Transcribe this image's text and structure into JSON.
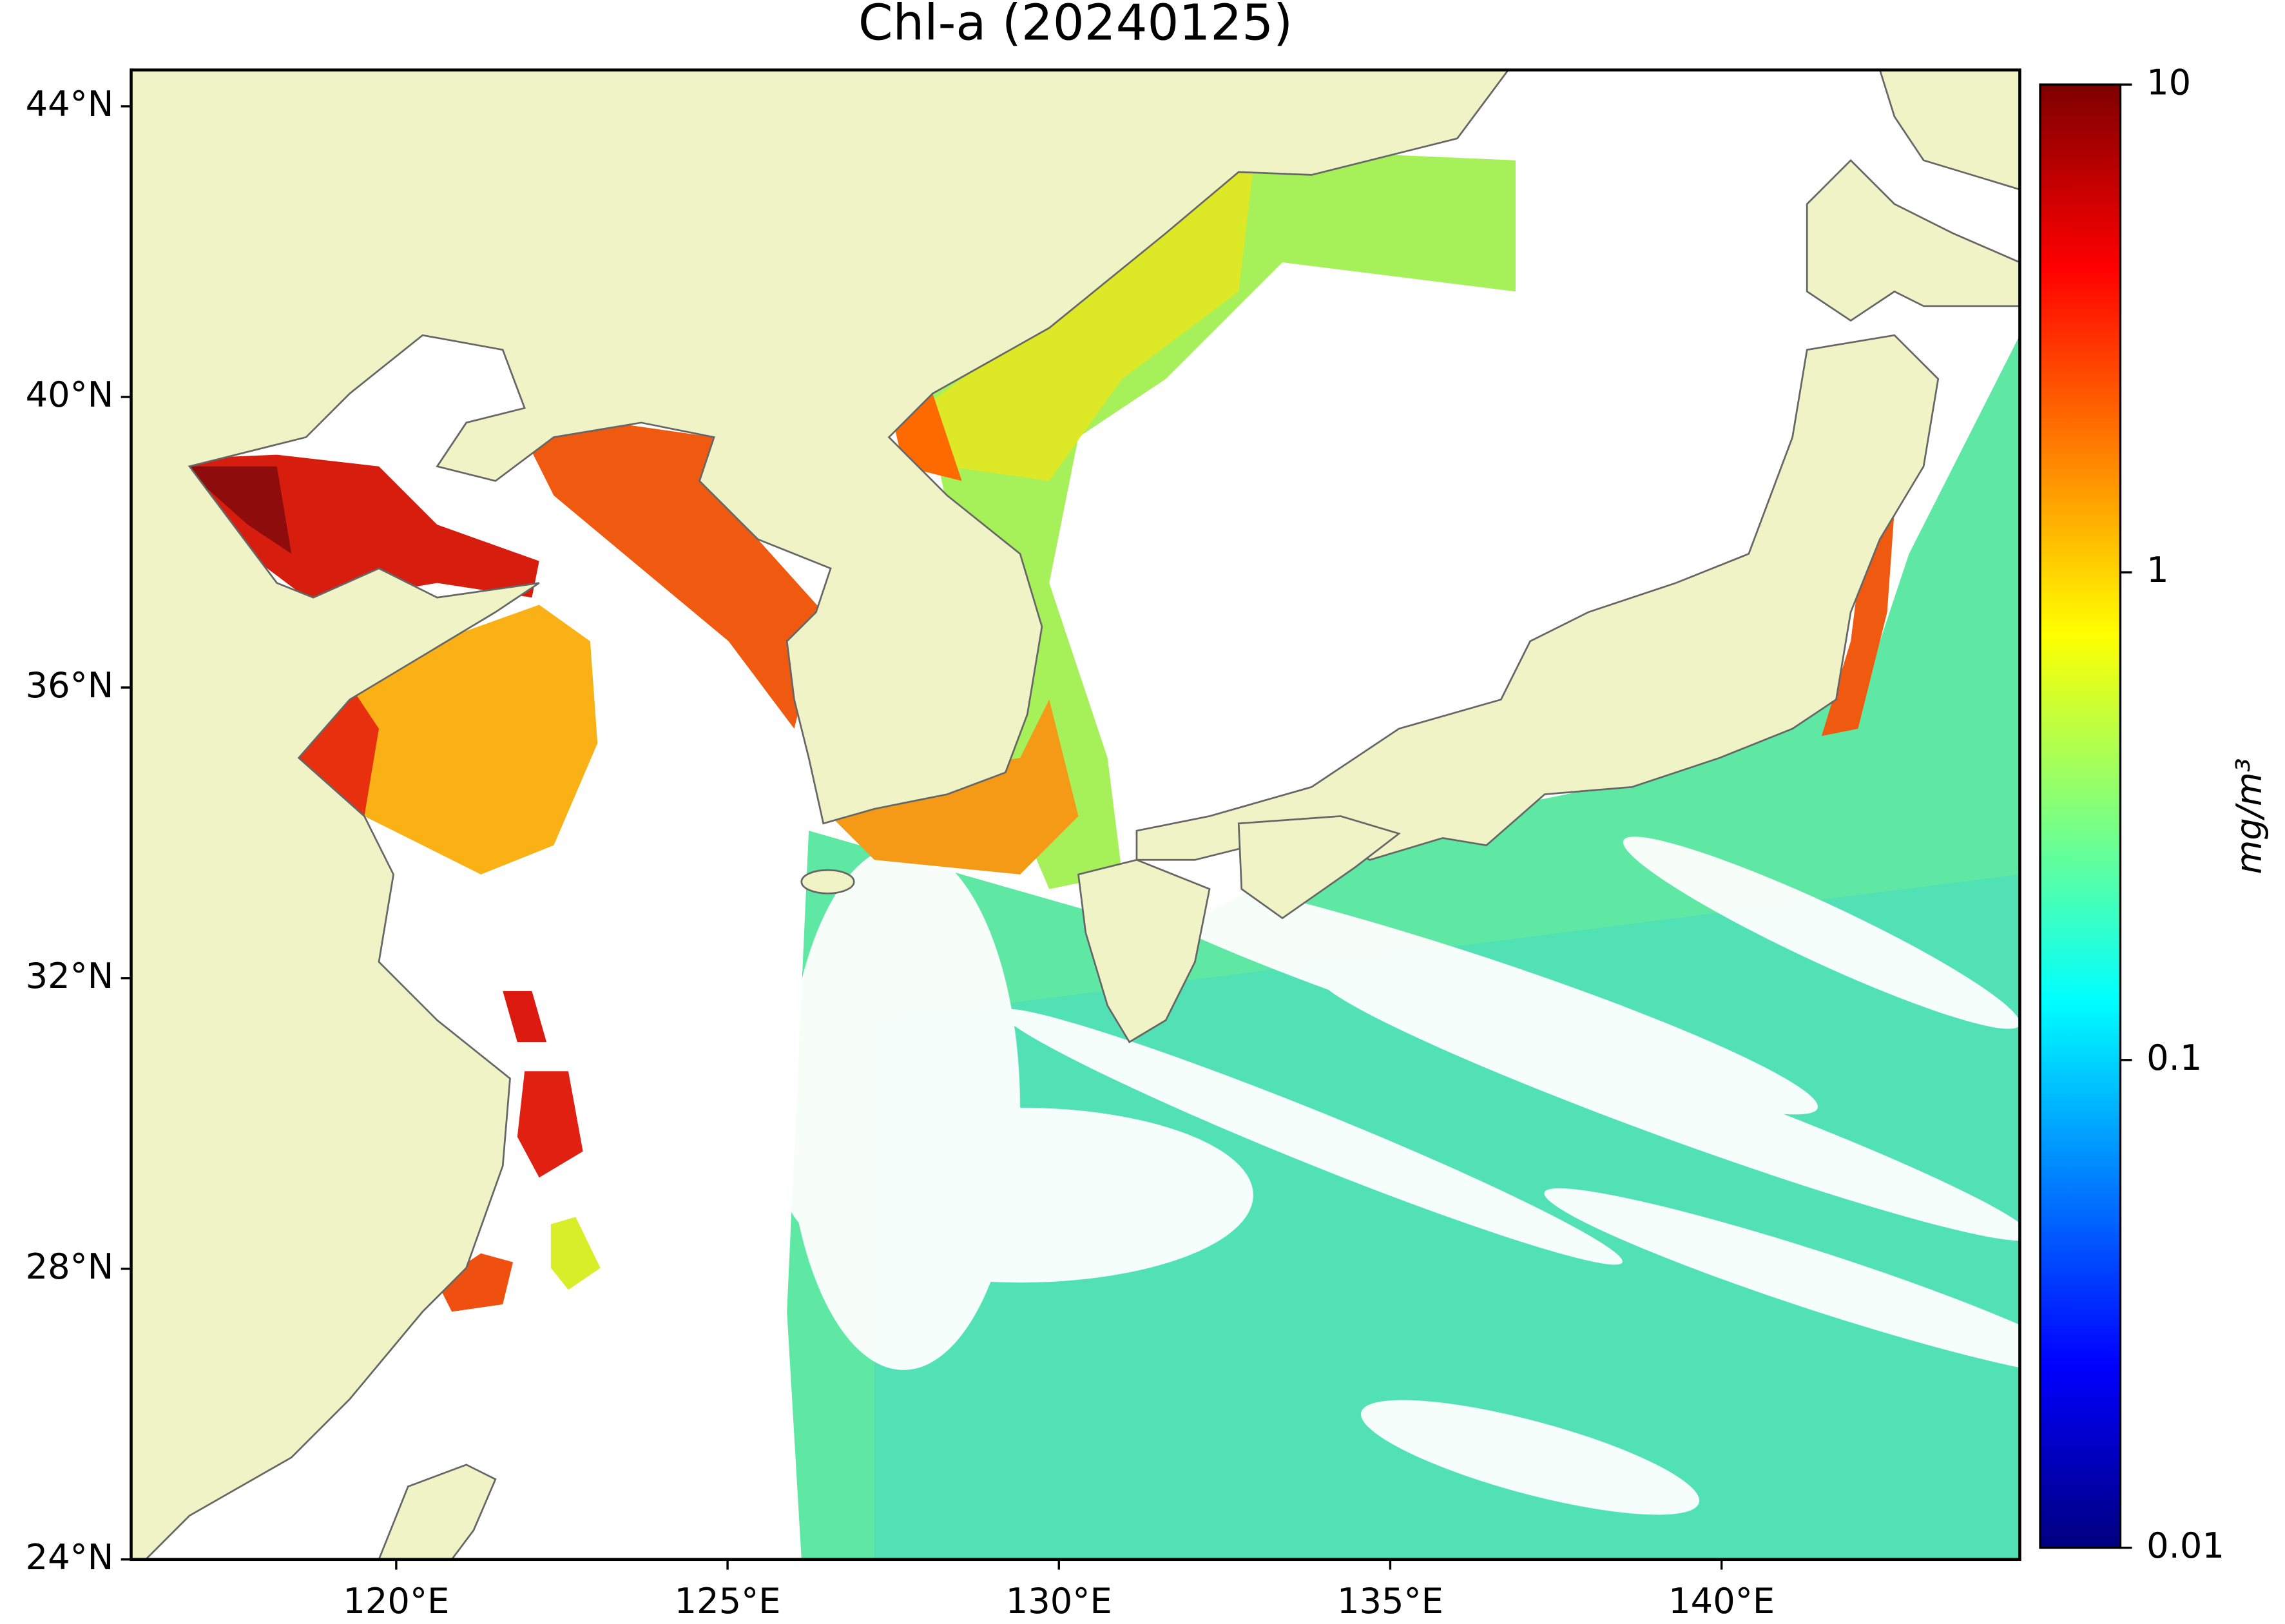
{
  "chart_data": {
    "type": "map",
    "title": "Chl-a (20240125)",
    "xlim": [
      116,
      144.5
    ],
    "ylim": [
      24,
      44.5
    ],
    "xticks": [
      {
        "value": 120,
        "label": "120°E"
      },
      {
        "value": 125,
        "label": "125°E"
      },
      {
        "value": 130,
        "label": "130°E"
      },
      {
        "value": 135,
        "label": "135°E"
      },
      {
        "value": 140,
        "label": "140°E"
      }
    ],
    "yticks": [
      {
        "value": 24,
        "label": "24°N"
      },
      {
        "value": 28,
        "label": "28°N"
      },
      {
        "value": 32,
        "label": "32°N"
      },
      {
        "value": 36,
        "label": "36°N"
      },
      {
        "value": 40,
        "label": "40°N"
      },
      {
        "value": 44,
        "label": "44°N"
      }
    ],
    "land_color": "#eff3c6",
    "colorbar": {
      "label": "mg/m³",
      "scale": "log",
      "lim": [
        0.01,
        10
      ],
      "ticks": [
        0.01,
        0.1,
        1,
        10
      ],
      "colors": [
        "#00007f",
        "#0000ff",
        "#007fff",
        "#00ffff",
        "#7fff7f",
        "#ffff00",
        "#ff7f00",
        "#ff0000",
        "#7f0000"
      ]
    }
  }
}
